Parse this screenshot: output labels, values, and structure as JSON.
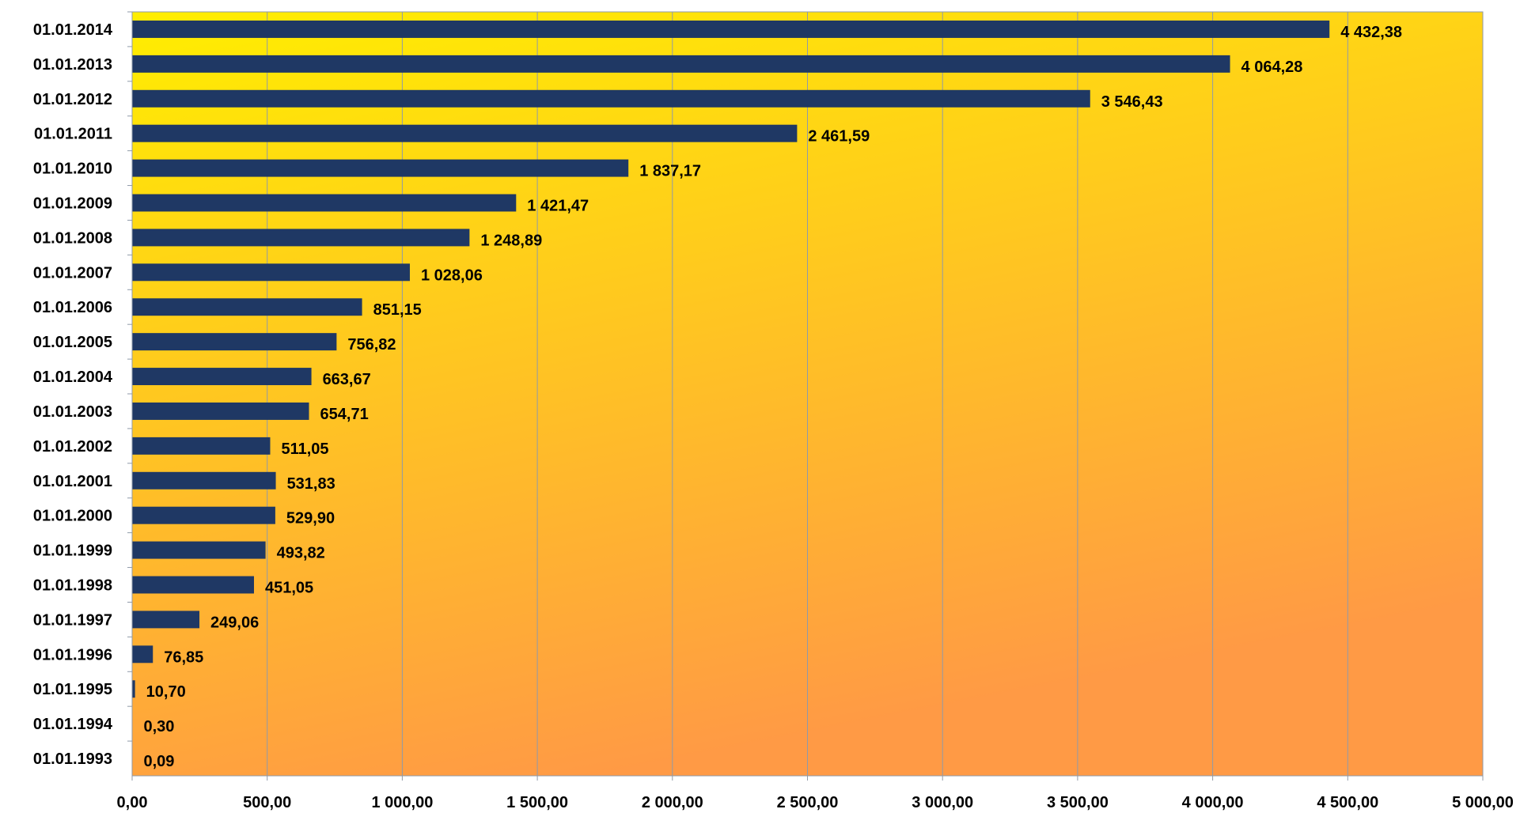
{
  "chart_data": {
    "type": "bar",
    "orientation": "horizontal",
    "categories": [
      "01.01.2014",
      "01.01.2013",
      "01.01.2012",
      "01.01.2011",
      "01.01.2010",
      "01.01.2009",
      "01.01.2008",
      "01.01.2007",
      "01.01.2006",
      "01.01.2005",
      "01.01.2004",
      "01.01.2003",
      "01.01.2002",
      "01.01.2001",
      "01.01.2000",
      "01.01.1999",
      "01.01.1998",
      "01.01.1997",
      "01.01.1996",
      "01.01.1995",
      "01.01.1994",
      "01.01.1993"
    ],
    "values": [
      4432.38,
      4064.28,
      3546.43,
      2461.59,
      1837.17,
      1421.47,
      1248.89,
      1028.06,
      851.15,
      756.82,
      663.67,
      654.71,
      511.05,
      531.83,
      529.9,
      493.82,
      451.05,
      249.06,
      76.85,
      10.7,
      0.3,
      0.09
    ],
    "value_labels": [
      "4 432,38",
      "4 064,28",
      "3 546,43",
      "2 461,59",
      "1 837,17",
      "1 421,47",
      "1 248,89",
      "1 028,06",
      "851,15",
      "756,82",
      "663,67",
      "654,71",
      "511,05",
      "531,83",
      "529,90",
      "493,82",
      "451,05",
      "249,06",
      "76,85",
      "10,70",
      "0,30",
      "0,09"
    ],
    "xlim": [
      0,
      5000
    ],
    "xticks": [
      0,
      500,
      1000,
      1500,
      2000,
      2500,
      3000,
      3500,
      4000,
      4500,
      5000
    ],
    "xtick_labels": [
      "0,00",
      "500,00",
      "1 000,00",
      "1 500,00",
      "2 000,00",
      "2 500,00",
      "3 000,00",
      "3 500,00",
      "4 000,00",
      "4 500,00",
      "5 000,00"
    ],
    "title": "",
    "xlabel": "",
    "ylabel": "",
    "grid": "vertical",
    "legend": "none",
    "colors": {
      "bar": "#1f3864",
      "background_top": "#ffee00",
      "background_bottom": "#ff9a45",
      "grid": "#8f9aa8",
      "text": "#000000"
    }
  }
}
